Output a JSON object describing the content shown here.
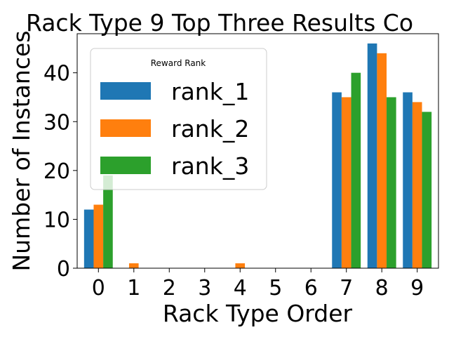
{
  "chart_data": {
    "type": "bar",
    "title": "Rack Type 9 Top Three Results Co",
    "xlabel": "Rack Type Order",
    "ylabel": "Number of Instances",
    "categories": [
      "0",
      "1",
      "2",
      "3",
      "4",
      "5",
      "6",
      "7",
      "8",
      "9"
    ],
    "ylim": [
      0,
      48
    ],
    "yticks": [
      "0",
      "10",
      "20",
      "30",
      "40"
    ],
    "legend": {
      "title": "Reward Rank",
      "placement": "upper-left"
    },
    "grid": false,
    "series": [
      {
        "name": "rank_1",
        "color": "#1f77b4",
        "values": [
          12,
          0,
          0,
          0,
          0,
          0,
          0,
          36,
          46,
          36
        ]
      },
      {
        "name": "rank_2",
        "color": "#ff7f0e",
        "values": [
          13,
          1,
          0,
          0,
          1,
          0,
          0,
          35,
          44,
          34
        ]
      },
      {
        "name": "rank_3",
        "color": "#2ca02c",
        "values": [
          19,
          0,
          0,
          0,
          0,
          0,
          0,
          40,
          35,
          32
        ]
      }
    ]
  }
}
